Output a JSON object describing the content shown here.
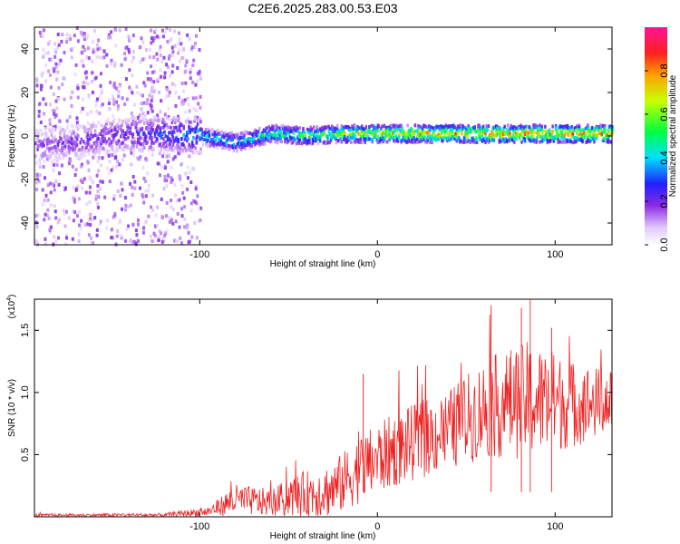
{
  "title": "C2E6.2025.283.00.53.E03",
  "chart_data": [
    {
      "type": "heatmap",
      "panel": "spectrogram",
      "xlabel": "Height of straight line (km)",
      "ylabel": "Frequency (Hz)",
      "xlim": [
        -193,
        132
      ],
      "ylim": [
        -50,
        50
      ],
      "xticks": [
        -100,
        0,
        100
      ],
      "yticks": [
        -40,
        -20,
        0,
        20,
        40
      ],
      "colorbar": {
        "label": "Normalized spectral amplitude",
        "range": [
          0,
          1
        ],
        "ticks": [
          0.0,
          0.2,
          0.4,
          0.6,
          0.8
        ]
      },
      "ridge": [
        {
          "x": -190,
          "f": -5,
          "amp": 0.2
        },
        {
          "x": -150,
          "f": 0,
          "amp": 0.25
        },
        {
          "x": -120,
          "f": 1,
          "amp": 0.35
        },
        {
          "x": -100,
          "f": 0,
          "amp": 0.45
        },
        {
          "x": -80,
          "f": -3,
          "amp": 0.5
        },
        {
          "x": -60,
          "f": 1,
          "amp": 0.55
        },
        {
          "x": -40,
          "f": 0,
          "amp": 0.6
        },
        {
          "x": -20,
          "f": 1,
          "amp": 0.7
        },
        {
          "x": 0,
          "f": 1,
          "amp": 0.8
        },
        {
          "x": 50,
          "f": 1,
          "amp": 0.85
        },
        {
          "x": 100,
          "f": 1,
          "amp": 0.9
        },
        {
          "x": 130,
          "f": 1,
          "amp": 0.9
        }
      ]
    },
    {
      "type": "line",
      "panel": "snr",
      "xlabel": "Height of straight line (km)",
      "ylabel": "SNR (10 * v/v)",
      "y_multiplier": "(x10",
      "y_exponent": "4",
      "y_multiplier_close": ")",
      "xlim": [
        -193,
        132
      ],
      "ylim": [
        0,
        1.75
      ],
      "xticks": [
        -100,
        0,
        100
      ],
      "yticks": [
        0.5,
        1.0,
        1.5
      ],
      "ytick_labels": [
        "0.5",
        "1.0",
        "1.5"
      ],
      "color": "#ee2222",
      "envelope": [
        {
          "x": -193,
          "base": 0.01,
          "amp": 0.02
        },
        {
          "x": -120,
          "base": 0.01,
          "amp": 0.03
        },
        {
          "x": -95,
          "base": 0.03,
          "amp": 0.08
        },
        {
          "x": -80,
          "base": 0.1,
          "amp": 0.25
        },
        {
          "x": -60,
          "base": 0.08,
          "amp": 0.22
        },
        {
          "x": -45,
          "base": 0.12,
          "amp": 0.35
        },
        {
          "x": -25,
          "base": 0.15,
          "amp": 0.45
        },
        {
          "x": -10,
          "base": 0.3,
          "amp": 0.55
        },
        {
          "x": 10,
          "base": 0.45,
          "amp": 0.6
        },
        {
          "x": 40,
          "base": 0.6,
          "amp": 0.65
        },
        {
          "x": 60,
          "base": 0.75,
          "amp": 0.8
        },
        {
          "x": 85,
          "base": 0.8,
          "amp": 0.95
        },
        {
          "x": 110,
          "base": 0.8,
          "amp": 0.7
        },
        {
          "x": 132,
          "base": 0.85,
          "amp": 0.5
        }
      ],
      "peaks": [
        {
          "x": -8,
          "y": 1.15
        },
        {
          "x": 64,
          "y": 1.7
        },
        {
          "x": 86,
          "y": 1.75
        },
        {
          "x": 81,
          "y": 1.68
        },
        {
          "x": 98,
          "y": 1.52
        }
      ]
    }
  ]
}
